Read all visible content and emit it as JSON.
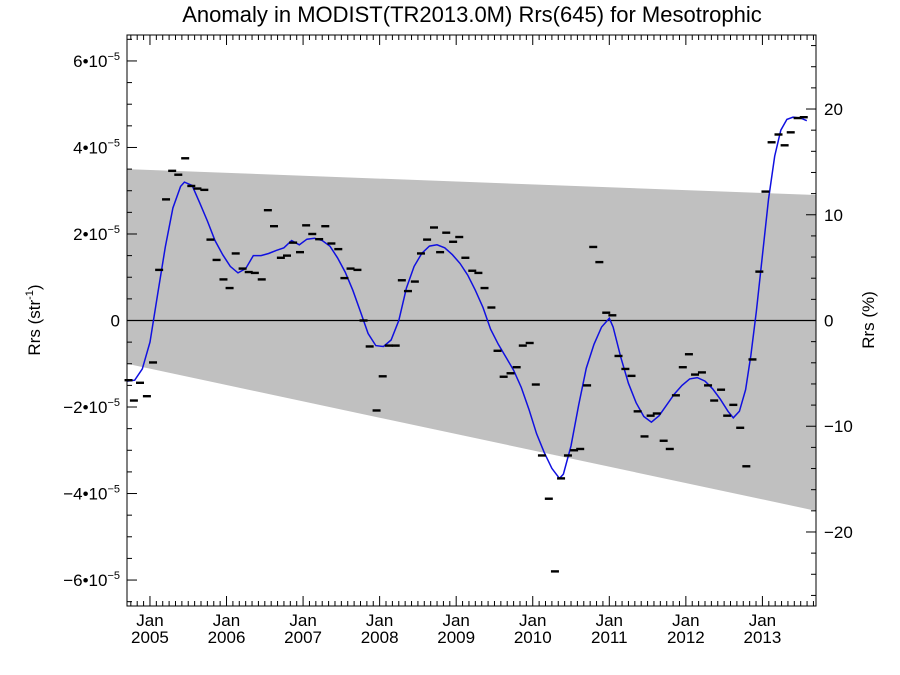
{
  "chart_data": {
    "type": "scatter",
    "title": "Anomaly in MODIST(TR2013.0M) Rrs(645) for Mesotrophic",
    "ylabel": "Rrs (str",
    "ylabel_sup": "-1",
    "ylabel_tail": ")",
    "y2label": "Rrs (%)",
    "xlim": [
      2004.7,
      2013.7
    ],
    "ylim": [
      -6.6e-05,
      6.6e-05
    ],
    "y2lim": [
      -27.0,
      27.0
    ],
    "grid": false,
    "x_ticks": [
      {
        "value": 2005.0,
        "line1": "Jan",
        "line2": "2005"
      },
      {
        "value": 2006.0,
        "line1": "Jan",
        "line2": "2006"
      },
      {
        "value": 2007.0,
        "line1": "Jan",
        "line2": "2007"
      },
      {
        "value": 2008.0,
        "line1": "Jan",
        "line2": "2008"
      },
      {
        "value": 2009.0,
        "line1": "Jan",
        "line2": "2009"
      },
      {
        "value": 2010.0,
        "line1": "Jan",
        "line2": "2010"
      },
      {
        "value": 2011.0,
        "line1": "Jan",
        "line2": "2011"
      },
      {
        "value": 2012.0,
        "line1": "Jan",
        "line2": "2012"
      },
      {
        "value": 2013.0,
        "line1": "Jan",
        "line2": "2013"
      }
    ],
    "y_ticks": [
      {
        "value": 6e-05,
        "mant": "6•10",
        "exp": "−5"
      },
      {
        "value": 4e-05,
        "mant": "4•10",
        "exp": "−5"
      },
      {
        "value": 2e-05,
        "mant": "2•10",
        "exp": "−5"
      },
      {
        "value": 0,
        "mant": "0",
        "exp": ""
      },
      {
        "value": -2e-05,
        "mant": "−2•10",
        "exp": "−5"
      },
      {
        "value": -4e-05,
        "mant": "−4•10",
        "exp": "−5"
      },
      {
        "value": -6e-05,
        "mant": "−6•10",
        "exp": "−5"
      }
    ],
    "y2_ticks": [
      {
        "value": 20,
        "label": "20"
      },
      {
        "value": 10,
        "label": "10"
      },
      {
        "value": 0,
        "label": "0"
      },
      {
        "value": -10,
        "label": "−10"
      },
      {
        "value": -20,
        "label": "−20"
      }
    ],
    "band": {
      "upper": [
        [
          2004.7,
          3.5e-05
        ],
        [
          2013.7,
          2.9e-05
        ]
      ],
      "lower": [
        [
          2004.7,
          -1e-05
        ],
        [
          2013.7,
          -4.4e-05
        ]
      ]
    },
    "zero_line": 0,
    "points": [
      {
        "x": 2004.72,
        "y": -1.38e-05
      },
      {
        "x": 2004.79,
        "y": -1.85e-05
      },
      {
        "x": 2004.87,
        "y": -1.44e-05
      },
      {
        "x": 2004.96,
        "y": -1.75e-05
      },
      {
        "x": 2005.04,
        "y": -9.7e-06
      },
      {
        "x": 2005.12,
        "y": 1.17e-05
      },
      {
        "x": 2005.21,
        "y": 2.8e-05
      },
      {
        "x": 2005.29,
        "y": 3.46e-05
      },
      {
        "x": 2005.37,
        "y": 3.37e-05
      },
      {
        "x": 2005.46,
        "y": 3.75e-05
      },
      {
        "x": 2005.54,
        "y": 3.11e-05
      },
      {
        "x": 2005.62,
        "y": 3.05e-05
      },
      {
        "x": 2005.71,
        "y": 3.02e-05
      },
      {
        "x": 2005.79,
        "y": 1.87e-05
      },
      {
        "x": 2005.87,
        "y": 1.4e-05
      },
      {
        "x": 2005.96,
        "y": 9.5e-06
      },
      {
        "x": 2006.04,
        "y": 7.5e-06
      },
      {
        "x": 2006.12,
        "y": 1.55e-05
      },
      {
        "x": 2006.21,
        "y": 1.2e-05
      },
      {
        "x": 2006.29,
        "y": 1.12e-05
      },
      {
        "x": 2006.37,
        "y": 1.1e-05
      },
      {
        "x": 2006.46,
        "y": 9.5e-06
      },
      {
        "x": 2006.54,
        "y": 2.55e-05
      },
      {
        "x": 2006.62,
        "y": 2.18e-05
      },
      {
        "x": 2006.71,
        "y": 1.45e-05
      },
      {
        "x": 2006.79,
        "y": 1.5e-05
      },
      {
        "x": 2006.87,
        "y": 1.8e-05
      },
      {
        "x": 2006.96,
        "y": 1.58e-05
      },
      {
        "x": 2007.04,
        "y": 2.2e-05
      },
      {
        "x": 2007.12,
        "y": 2e-05
      },
      {
        "x": 2007.21,
        "y": 1.88e-05
      },
      {
        "x": 2007.29,
        "y": 2.18e-05
      },
      {
        "x": 2007.37,
        "y": 1.78e-05
      },
      {
        "x": 2007.46,
        "y": 1.65e-05
      },
      {
        "x": 2007.54,
        "y": 9.8e-06
      },
      {
        "x": 2007.62,
        "y": 1.2e-05
      },
      {
        "x": 2007.71,
        "y": 1.17e-05
      },
      {
        "x": 2007.79,
        "y": 0.0
      },
      {
        "x": 2007.87,
        "y": -6e-06
      },
      {
        "x": 2007.96,
        "y": -2.08e-05
      },
      {
        "x": 2008.04,
        "y": -1.29e-05
      },
      {
        "x": 2008.12,
        "y": -5.8e-06
      },
      {
        "x": 2008.21,
        "y": -5.8e-06
      },
      {
        "x": 2008.29,
        "y": 9.3e-06
      },
      {
        "x": 2008.37,
        "y": 6.8e-06
      },
      {
        "x": 2008.46,
        "y": 9e-06
      },
      {
        "x": 2008.54,
        "y": 1.55e-05
      },
      {
        "x": 2008.62,
        "y": 1.87e-05
      },
      {
        "x": 2008.71,
        "y": 2.15e-05
      },
      {
        "x": 2008.79,
        "y": 1.58e-05
      },
      {
        "x": 2008.87,
        "y": 2.03e-05
      },
      {
        "x": 2008.96,
        "y": 1.82e-05
      },
      {
        "x": 2009.04,
        "y": 1.93e-05
      },
      {
        "x": 2009.12,
        "y": 1.45e-05
      },
      {
        "x": 2009.21,
        "y": 1.15e-05
      },
      {
        "x": 2009.29,
        "y": 1.1e-05
      },
      {
        "x": 2009.37,
        "y": 7.5e-06
      },
      {
        "x": 2009.46,
        "y": 3e-06
      },
      {
        "x": 2009.54,
        "y": -7e-06
      },
      {
        "x": 2009.62,
        "y": -1.3e-05
      },
      {
        "x": 2009.71,
        "y": -1.22e-05
      },
      {
        "x": 2009.79,
        "y": -1.08e-05
      },
      {
        "x": 2009.87,
        "y": -5.8e-06
      },
      {
        "x": 2009.96,
        "y": -5.2e-06
      },
      {
        "x": 2010.04,
        "y": -1.48e-05
      },
      {
        "x": 2010.12,
        "y": -3.12e-05
      },
      {
        "x": 2010.21,
        "y": -4.12e-05
      },
      {
        "x": 2010.29,
        "y": -5.8e-05
      },
      {
        "x": 2010.37,
        "y": -3.65e-05
      },
      {
        "x": 2010.46,
        "y": -3.12e-05
      },
      {
        "x": 2010.54,
        "y": -3e-05
      },
      {
        "x": 2010.62,
        "y": -2.97e-05
      },
      {
        "x": 2010.71,
        "y": -1.5e-05
      },
      {
        "x": 2010.79,
        "y": 1.7e-05
      },
      {
        "x": 2010.87,
        "y": 1.35e-05
      },
      {
        "x": 2010.96,
        "y": 1.8e-06
      },
      {
        "x": 2011.04,
        "y": 1.2e-06
      },
      {
        "x": 2011.12,
        "y": -8.2e-06
      },
      {
        "x": 2011.21,
        "y": -1.12e-05
      },
      {
        "x": 2011.29,
        "y": -1.28e-05
      },
      {
        "x": 2011.37,
        "y": -2.1e-05
      },
      {
        "x": 2011.46,
        "y": -2.68e-05
      },
      {
        "x": 2011.54,
        "y": -2.2e-05
      },
      {
        "x": 2011.62,
        "y": -2.15e-05
      },
      {
        "x": 2011.71,
        "y": -2.78e-05
      },
      {
        "x": 2011.79,
        "y": -2.97e-05
      },
      {
        "x": 2011.87,
        "y": -1.73e-05
      },
      {
        "x": 2011.96,
        "y": -1.08e-05
      },
      {
        "x": 2012.04,
        "y": -7.8e-06
      },
      {
        "x": 2012.12,
        "y": -1.25e-05
      },
      {
        "x": 2012.21,
        "y": -1.2e-05
      },
      {
        "x": 2012.29,
        "y": -1.5e-05
      },
      {
        "x": 2012.37,
        "y": -1.85e-05
      },
      {
        "x": 2012.46,
        "y": -1.6e-05
      },
      {
        "x": 2012.54,
        "y": -2.2e-05
      },
      {
        "x": 2012.62,
        "y": -1.95e-05
      },
      {
        "x": 2012.71,
        "y": -2.48e-05
      },
      {
        "x": 2012.79,
        "y": -3.37e-05
      },
      {
        "x": 2012.87,
        "y": -9e-06
      },
      {
        "x": 2012.96,
        "y": 1.13e-05
      },
      {
        "x": 2013.04,
        "y": 2.98e-05
      },
      {
        "x": 2013.12,
        "y": 4.12e-05
      },
      {
        "x": 2013.21,
        "y": 4.3e-05
      },
      {
        "x": 2013.29,
        "y": 4.05e-05
      },
      {
        "x": 2013.37,
        "y": 4.35e-05
      },
      {
        "x": 2013.46,
        "y": 4.68e-05
      },
      {
        "x": 2013.54,
        "y": 4.7e-05
      }
    ],
    "smooth_line": [
      [
        2004.7,
        -1.4e-05
      ],
      [
        2004.8,
        -1.38e-05
      ],
      [
        2004.9,
        -1.12e-05
      ],
      [
        2005.0,
        -5e-06
      ],
      [
        2005.1,
        6e-06
      ],
      [
        2005.2,
        1.7e-05
      ],
      [
        2005.3,
        2.6e-05
      ],
      [
        2005.4,
        3.1e-05
      ],
      [
        2005.45,
        3.2e-05
      ],
      [
        2005.55,
        3.12e-05
      ],
      [
        2005.65,
        2.72e-05
      ],
      [
        2005.75,
        2.3e-05
      ],
      [
        2005.85,
        1.85e-05
      ],
      [
        2005.95,
        1.52e-05
      ],
      [
        2006.05,
        1.25e-05
      ],
      [
        2006.15,
        1.1e-05
      ],
      [
        2006.25,
        1.2e-05
      ],
      [
        2006.35,
        1.5e-05
      ],
      [
        2006.45,
        1.5e-05
      ],
      [
        2006.55,
        1.55e-05
      ],
      [
        2006.65,
        1.62e-05
      ],
      [
        2006.75,
        1.68e-05
      ],
      [
        2006.85,
        1.85e-05
      ],
      [
        2006.95,
        1.75e-05
      ],
      [
        2007.05,
        1.88e-05
      ],
      [
        2007.15,
        1.9e-05
      ],
      [
        2007.25,
        1.85e-05
      ],
      [
        2007.35,
        1.72e-05
      ],
      [
        2007.45,
        1.45e-05
      ],
      [
        2007.55,
        1.12e-05
      ],
      [
        2007.65,
        7e-06
      ],
      [
        2007.75,
        2e-06
      ],
      [
        2007.85,
        -3e-06
      ],
      [
        2007.95,
        -5.8e-06
      ],
      [
        2008.05,
        -6e-06
      ],
      [
        2008.15,
        -4.5e-06
      ],
      [
        2008.25,
        0.0
      ],
      [
        2008.35,
        7.5e-06
      ],
      [
        2008.45,
        1.25e-05
      ],
      [
        2008.55,
        1.55e-05
      ],
      [
        2008.65,
        1.72e-05
      ],
      [
        2008.75,
        1.75e-05
      ],
      [
        2008.85,
        1.68e-05
      ],
      [
        2008.95,
        1.52e-05
      ],
      [
        2009.05,
        1.32e-05
      ],
      [
        2009.15,
        1.05e-05
      ],
      [
        2009.25,
        7e-06
      ],
      [
        2009.35,
        3e-06
      ],
      [
        2009.45,
        -2e-06
      ],
      [
        2009.55,
        -5.5e-06
      ],
      [
        2009.65,
        -8.5e-06
      ],
      [
        2009.75,
        -1.15e-05
      ],
      [
        2009.85,
        -1.55e-05
      ],
      [
        2009.95,
        -2.05e-05
      ],
      [
        2010.05,
        -2.62e-05
      ],
      [
        2010.15,
        -3.05e-05
      ],
      [
        2010.25,
        -3.42e-05
      ],
      [
        2010.35,
        -3.65e-05
      ],
      [
        2010.4,
        -3.55e-05
      ],
      [
        2010.5,
        -2.9e-05
      ],
      [
        2010.6,
        -1.95e-05
      ],
      [
        2010.7,
        -1.1e-05
      ],
      [
        2010.8,
        -5.5e-06
      ],
      [
        2010.9,
        -1.5e-06
      ],
      [
        2011.0,
        5e-07
      ],
      [
        2011.05,
        -1.5e-06
      ],
      [
        2011.15,
        -8.5e-06
      ],
      [
        2011.25,
        -1.45e-05
      ],
      [
        2011.35,
        -1.9e-05
      ],
      [
        2011.45,
        -2.22e-05
      ],
      [
        2011.55,
        -2.35e-05
      ],
      [
        2011.65,
        -2.2e-05
      ],
      [
        2011.75,
        -1.95e-05
      ],
      [
        2011.85,
        -1.7e-05
      ],
      [
        2011.95,
        -1.5e-05
      ],
      [
        2012.05,
        -1.35e-05
      ],
      [
        2012.15,
        -1.32e-05
      ],
      [
        2012.25,
        -1.4e-05
      ],
      [
        2012.35,
        -1.58e-05
      ],
      [
        2012.45,
        -1.82e-05
      ],
      [
        2012.55,
        -2.1e-05
      ],
      [
        2012.62,
        -2.25e-05
      ],
      [
        2012.7,
        -2.1e-05
      ],
      [
        2012.78,
        -1.6e-05
      ],
      [
        2012.85,
        -8e-06
      ],
      [
        2012.92,
        2e-06
      ],
      [
        2013.0,
        1.5e-05
      ],
      [
        2013.08,
        2.8e-05
      ],
      [
        2013.16,
        3.8e-05
      ],
      [
        2013.24,
        4.4e-05
      ],
      [
        2013.32,
        4.65e-05
      ],
      [
        2013.4,
        4.7e-05
      ],
      [
        2013.5,
        4.68e-05
      ],
      [
        2013.58,
        4.62e-05
      ]
    ]
  }
}
